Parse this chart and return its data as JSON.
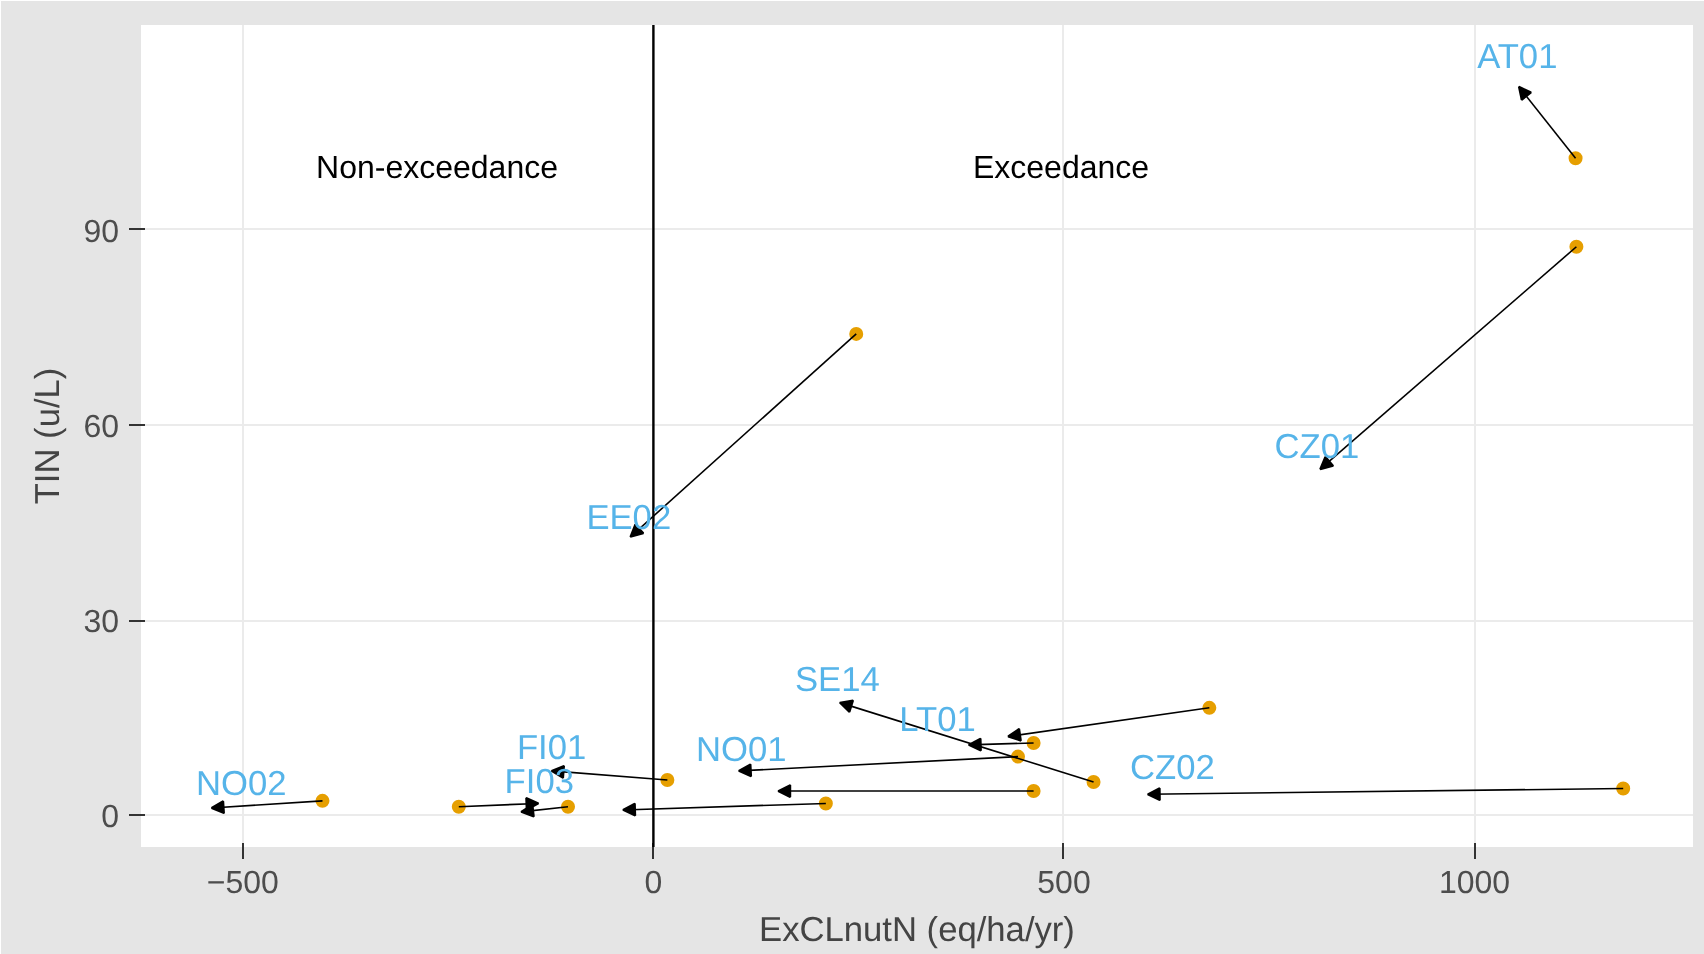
{
  "chart_data": {
    "type": "scatter",
    "xlabel": "ExCLnutN (eq/ha/yr)",
    "ylabel": "TIN (u/L)",
    "xlim": [
      -624,
      1266
    ],
    "ylim": [
      -4.9,
      121.5
    ],
    "xticks": [
      -500,
      0,
      500,
      1000
    ],
    "yticks": [
      0,
      30,
      60,
      90
    ],
    "grid": true,
    "series": [
      {
        "color": "#e69f00",
        "x": [
          -403,
          -237,
          -104,
          17,
          210,
          677,
          463,
          444,
          463,
          536,
          1181,
          247,
          1123,
          1124
        ],
        "values": [
          2.2,
          1.3,
          1.3,
          5.4,
          1.8,
          16.5,
          11.1,
          9.0,
          3.7,
          5.1,
          4.1,
          74.0,
          101.0,
          87.4
        ]
      }
    ],
    "ref_lines": [
      {
        "axis": "x",
        "value": 0,
        "color": "#000000"
      }
    ],
    "annotations": [
      "Non-exceedance",
      "Exceedance",
      {
        "text": "AT01",
        "x": 1123,
        "y": 101.0
      },
      {
        "text": "CZ01",
        "x": 1124,
        "y": 87.4
      },
      {
        "text": "EE02",
        "x": 247,
        "y": 74.0
      },
      {
        "text": "SE14",
        "x": 536,
        "y": 5.1
      },
      {
        "text": "LT01",
        "x": 677,
        "y": 16.5
      },
      {
        "text": "NO01",
        "x": 444,
        "y": 9.0
      },
      {
        "text": "FI01",
        "x": 17,
        "y": 5.4
      },
      {
        "text": "FI03",
        "x": -104,
        "y": 1.3
      },
      {
        "text": "NO02",
        "x": -403,
        "y": 2.2
      },
      {
        "text": "CZ02",
        "x": 1181,
        "y": 4.1
      }
    ]
  }
}
